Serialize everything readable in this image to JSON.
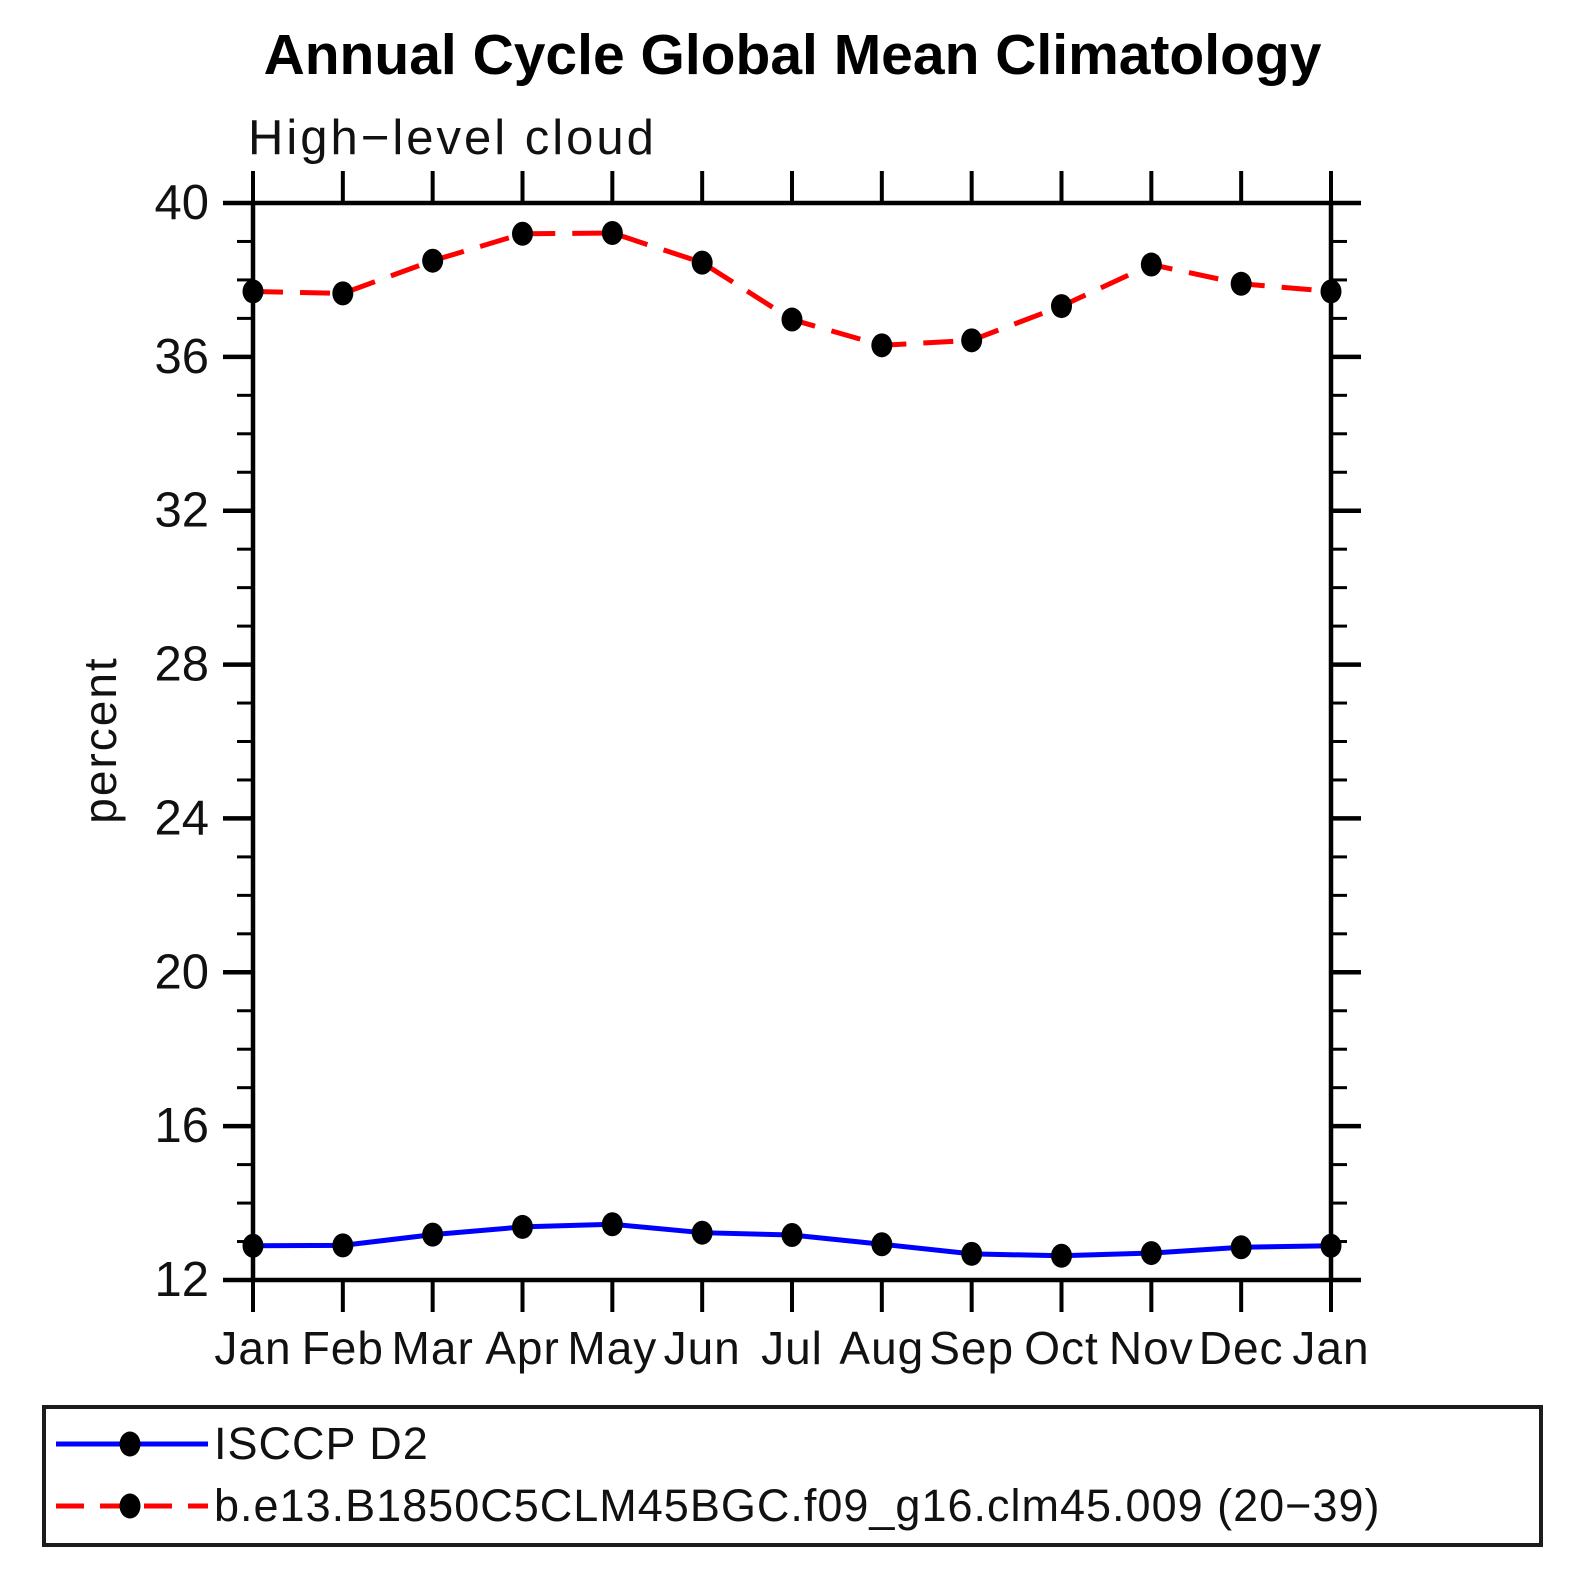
{
  "chart_data": {
    "type": "line",
    "title": "Annual Cycle Global Mean Climatology",
    "subtitle": "High−level cloud",
    "ylabel": "percent",
    "xlabel": "",
    "categories": [
      "Jan",
      "Feb",
      "Mar",
      "Apr",
      "May",
      "Jun",
      "Jul",
      "Aug",
      "Sep",
      "Oct",
      "Nov",
      "Dec",
      "Jan"
    ],
    "ylim": [
      12,
      40
    ],
    "ytick_major": [
      12,
      16,
      20,
      24,
      28,
      32,
      36,
      40
    ],
    "ytick_minor_step": 1,
    "grid": false,
    "legend_position": "bottom-box",
    "axis_color": "#000000",
    "marker_color": "#000000",
    "series": [
      {
        "name": "ISCCP D2",
        "color": "#0000ff",
        "style": "solid",
        "marker": "black-dot",
        "values": [
          12.89,
          12.9,
          13.18,
          13.38,
          13.45,
          13.23,
          13.17,
          12.93,
          12.68,
          12.63,
          12.7,
          12.85,
          12.89
        ]
      },
      {
        "name": "b.e13.B1850C5CLM45BGC.f09_g16.clm45.009 (20−39)",
        "color": "#ff0000",
        "style": "dashed",
        "marker": "black-dot",
        "values": [
          37.7,
          37.65,
          38.5,
          39.2,
          39.22,
          38.45,
          36.97,
          36.3,
          36.43,
          37.32,
          38.4,
          37.9,
          37.7
        ]
      }
    ]
  }
}
